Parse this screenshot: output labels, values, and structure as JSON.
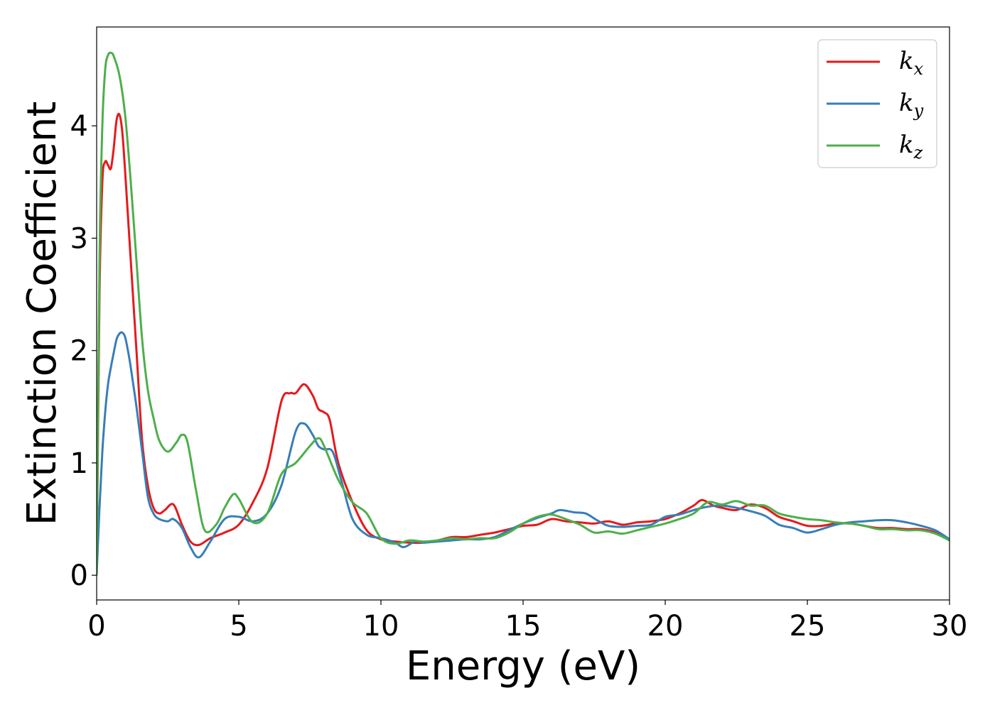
{
  "chart_data": {
    "type": "line",
    "xlabel": "Energy (eV)",
    "ylabel": "Extinction Coefficient",
    "xlim": [
      0,
      30
    ],
    "ylim": [
      -0.22,
      4.88
    ],
    "xticks": [
      0,
      5,
      10,
      15,
      20,
      25,
      30
    ],
    "xtick_labels": [
      "0",
      "5",
      "10",
      "15",
      "20",
      "25",
      "30"
    ],
    "yticks": [
      0,
      1,
      2,
      3,
      4
    ],
    "ytick_labels": [
      "0",
      "1",
      "2",
      "3",
      "4"
    ],
    "grid": false,
    "legend": "top-right",
    "series": [
      {
        "name": "k_x",
        "legend_base": "k",
        "legend_sub": "x",
        "color": "#e41a1c",
        "x": [
          0,
          0.1,
          0.2,
          0.3,
          0.4,
          0.5,
          0.6,
          0.7,
          0.8,
          0.9,
          1.0,
          1.2,
          1.4,
          1.6,
          1.8,
          2.0,
          2.2,
          2.4,
          2.7,
          3.0,
          3.3,
          3.6,
          4.0,
          4.5,
          5.0,
          5.5,
          6.0,
          6.5,
          6.8,
          7.0,
          7.3,
          7.6,
          7.8,
          8.0,
          8.2,
          8.5,
          9.0,
          9.5,
          10.0,
          10.5,
          11.0,
          11.5,
          12.0,
          12.5,
          13.0,
          13.5,
          14.0,
          14.5,
          15.0,
          15.5,
          16.0,
          16.5,
          17.0,
          17.5,
          18.0,
          18.5,
          19.0,
          19.5,
          20.0,
          20.5,
          21.0,
          21.3,
          21.7,
          22.0,
          22.5,
          23.0,
          23.5,
          24.0,
          24.5,
          25.0,
          25.5,
          26.0,
          26.5,
          27.0,
          27.5,
          28.0,
          28.5,
          29.0,
          29.5,
          30.0
        ],
        "y": [
          0,
          2.5,
          3.5,
          3.68,
          3.65,
          3.62,
          3.8,
          4.05,
          4.1,
          3.95,
          3.6,
          2.8,
          2.0,
          1.2,
          0.8,
          0.6,
          0.55,
          0.58,
          0.63,
          0.45,
          0.3,
          0.27,
          0.33,
          0.38,
          0.45,
          0.65,
          0.95,
          1.55,
          1.62,
          1.62,
          1.7,
          1.6,
          1.48,
          1.45,
          1.38,
          1.0,
          0.65,
          0.4,
          0.32,
          0.3,
          0.29,
          0.29,
          0.31,
          0.34,
          0.34,
          0.36,
          0.38,
          0.41,
          0.44,
          0.45,
          0.5,
          0.48,
          0.47,
          0.46,
          0.48,
          0.45,
          0.47,
          0.48,
          0.5,
          0.55,
          0.62,
          0.67,
          0.62,
          0.6,
          0.58,
          0.63,
          0.6,
          0.52,
          0.48,
          0.44,
          0.44,
          0.46,
          0.46,
          0.44,
          0.42,
          0.42,
          0.41,
          0.41,
          0.38,
          0.31
        ]
      },
      {
        "name": "k_y",
        "legend_base": "k",
        "legend_sub": "y",
        "color": "#377eb8",
        "x": [
          0,
          0.1,
          0.2,
          0.3,
          0.4,
          0.5,
          0.6,
          0.7,
          0.8,
          0.9,
          1.0,
          1.1,
          1.2,
          1.4,
          1.6,
          1.8,
          2.0,
          2.2,
          2.5,
          2.7,
          3.0,
          3.3,
          3.6,
          4.0,
          4.5,
          5.0,
          5.5,
          6.0,
          6.5,
          7.0,
          7.3,
          7.6,
          7.8,
          8.0,
          8.3,
          8.6,
          9.0,
          9.5,
          10.0,
          10.5,
          10.8,
          11.2,
          11.5,
          12.0,
          12.5,
          13.0,
          13.5,
          14.0,
          14.5,
          15.0,
          15.5,
          16.0,
          16.3,
          16.8,
          17.2,
          17.6,
          18.0,
          18.5,
          19.0,
          19.5,
          20.0,
          20.5,
          21.0,
          21.5,
          22.0,
          22.5,
          23.0,
          23.5,
          24.0,
          24.5,
          25.0,
          25.5,
          26.0,
          26.5,
          27.0,
          27.5,
          28.0,
          28.5,
          29.0,
          29.5,
          30.0
        ],
        "y": [
          0,
          0.6,
          1.1,
          1.45,
          1.7,
          1.85,
          1.98,
          2.1,
          2.15,
          2.16,
          2.12,
          2.0,
          1.85,
          1.5,
          1.1,
          0.7,
          0.55,
          0.5,
          0.48,
          0.5,
          0.42,
          0.25,
          0.16,
          0.3,
          0.5,
          0.52,
          0.48,
          0.55,
          0.8,
          1.28,
          1.35,
          1.25,
          1.15,
          1.12,
          1.1,
          0.85,
          0.5,
          0.36,
          0.33,
          0.29,
          0.25,
          0.3,
          0.29,
          0.3,
          0.31,
          0.32,
          0.32,
          0.34,
          0.4,
          0.46,
          0.51,
          0.55,
          0.58,
          0.56,
          0.55,
          0.49,
          0.44,
          0.43,
          0.44,
          0.45,
          0.52,
          0.54,
          0.58,
          0.61,
          0.62,
          0.6,
          0.57,
          0.53,
          0.45,
          0.42,
          0.38,
          0.41,
          0.45,
          0.47,
          0.48,
          0.49,
          0.49,
          0.47,
          0.44,
          0.4,
          0.32
        ]
      },
      {
        "name": "k_z",
        "legend_base": "k",
        "legend_sub": "z",
        "color": "#4daf4a",
        "x": [
          0,
          0.1,
          0.2,
          0.3,
          0.4,
          0.5,
          0.6,
          0.8,
          1.0,
          1.2,
          1.4,
          1.6,
          1.8,
          2.0,
          2.2,
          2.5,
          2.8,
          3.0,
          3.2,
          3.5,
          3.8,
          4.2,
          4.5,
          4.8,
          5.0,
          5.5,
          6.0,
          6.5,
          7.0,
          7.5,
          7.8,
          8.0,
          8.5,
          9.0,
          9.5,
          10.0,
          10.5,
          11.0,
          11.5,
          12.0,
          12.5,
          13.0,
          13.5,
          14.0,
          14.5,
          15.0,
          15.5,
          16.0,
          16.5,
          17.0,
          17.5,
          18.0,
          18.5,
          19.0,
          19.5,
          20.0,
          20.5,
          21.0,
          21.5,
          22.0,
          22.5,
          23.0,
          23.5,
          24.0,
          24.5,
          25.0,
          25.5,
          26.0,
          26.5,
          27.0,
          27.5,
          28.0,
          28.5,
          29.0,
          29.5,
          30.0
        ],
        "y": [
          0,
          2.8,
          4.0,
          4.5,
          4.63,
          4.65,
          4.62,
          4.45,
          4.1,
          3.5,
          2.8,
          2.1,
          1.65,
          1.4,
          1.2,
          1.1,
          1.18,
          1.25,
          1.18,
          0.75,
          0.4,
          0.45,
          0.6,
          0.72,
          0.68,
          0.47,
          0.55,
          0.9,
          1.0,
          1.15,
          1.22,
          1.15,
          0.85,
          0.65,
          0.55,
          0.33,
          0.28,
          0.31,
          0.3,
          0.31,
          0.33,
          0.32,
          0.33,
          0.33,
          0.38,
          0.46,
          0.52,
          0.54,
          0.5,
          0.45,
          0.38,
          0.39,
          0.37,
          0.4,
          0.43,
          0.46,
          0.5,
          0.55,
          0.65,
          0.63,
          0.66,
          0.62,
          0.62,
          0.55,
          0.52,
          0.5,
          0.49,
          0.47,
          0.46,
          0.44,
          0.41,
          0.41,
          0.4,
          0.4,
          0.37,
          0.31
        ]
      }
    ]
  }
}
